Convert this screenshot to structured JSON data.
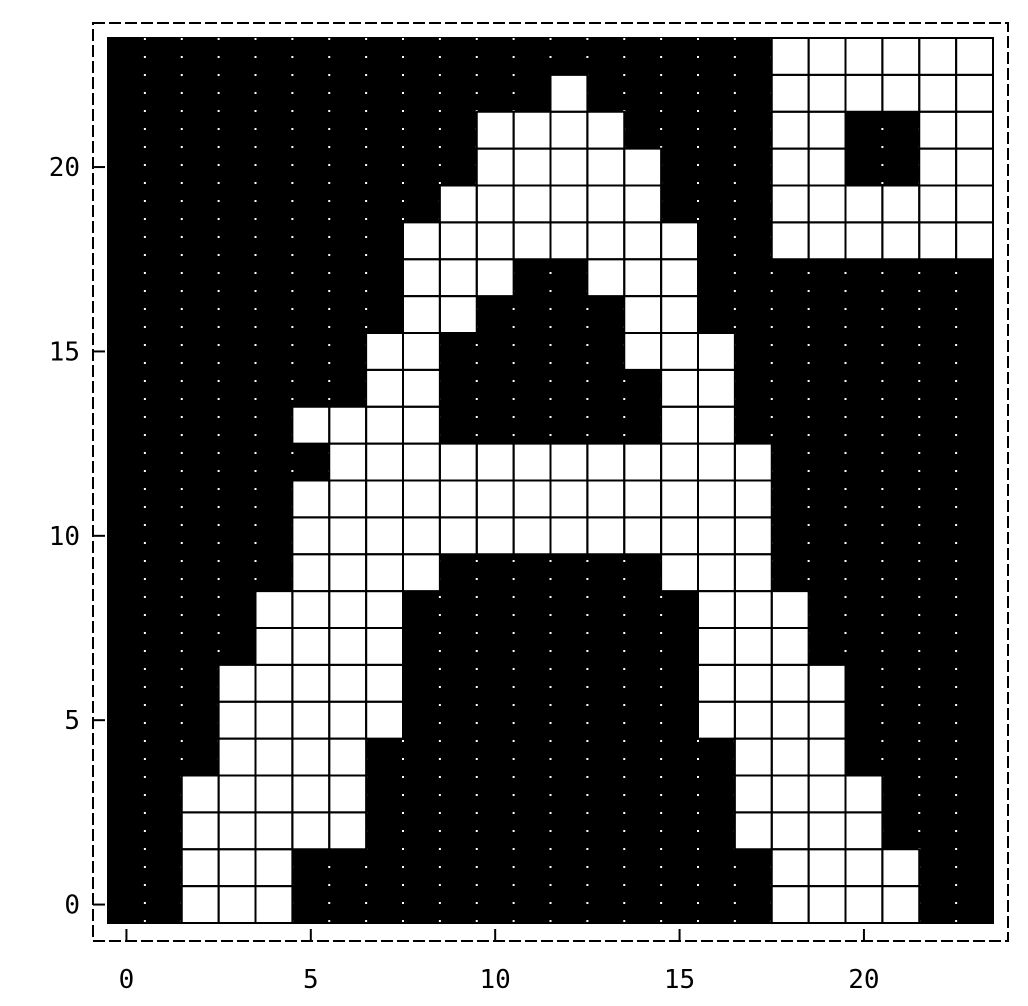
{
  "chart_data": {
    "type": "heatmap",
    "title": "",
    "xlabel": "",
    "ylabel": "",
    "xlim": [
      0,
      24
    ],
    "ylim": [
      0,
      24
    ],
    "xticks": [
      0,
      5,
      10,
      15,
      20
    ],
    "yticks": [
      0,
      5,
      10,
      15,
      20
    ],
    "grid": true,
    "colors": {
      "off": "#000000",
      "on": "#ffffff",
      "grid_lines": "#000000"
    },
    "rows_top_to_bottom": [
      "000000000000000000111111",
      "000000000000100000111111",
      "000000000011110000110011",
      "000000000011111000110011",
      "000000000111111000111111",
      "000000001111111100111111",
      "000000001110011100000000",
      "000000001100001100000000",
      "000000011000001110000000",
      "000000011000000110000000",
      "000001111000000110000000",
      "000000111111111111000000",
      "000001111111111111000000",
      "000001111111111111000000",
      "000001111000000111000000",
      "000011110000000011100000",
      "000011110000000011100000",
      "000111110000000011110000",
      "000111110000000011110000",
      "000111100000000001110000",
      "001111100000000001111000",
      "001111100000000001111000",
      "001110000000000000111100",
      "001110000000000000111100"
    ]
  }
}
